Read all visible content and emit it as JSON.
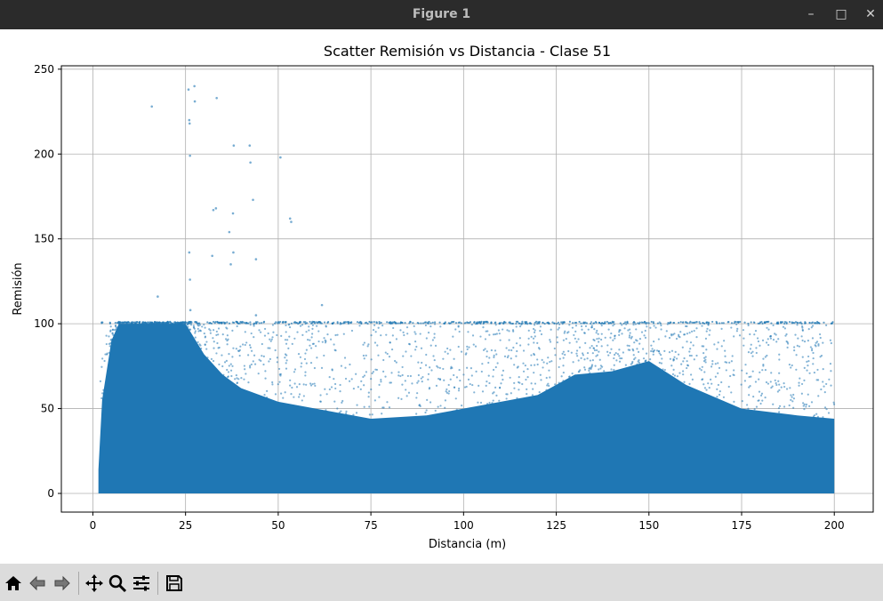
{
  "window": {
    "title": "Figure 1",
    "minimize_glyph": "–",
    "maximize_glyph": "□",
    "close_glyph": "✕"
  },
  "toolbar": {
    "buttons": [
      {
        "icon": "home-icon"
      },
      {
        "icon": "back-arrow-icon"
      },
      {
        "icon": "forward-arrow-icon"
      },
      {
        "icon": "pan-icon"
      },
      {
        "icon": "zoom-icon"
      },
      {
        "icon": "configure-subplots-icon"
      },
      {
        "icon": "save-icon"
      }
    ]
  },
  "chart_data": {
    "type": "scatter",
    "title": "Scatter Remisión vs Distancia - Clase 51",
    "xlabel": "Distancia (m)",
    "ylabel": "Remisión",
    "xlim": [
      -8.5,
      210.5
    ],
    "ylim": [
      -11,
      252
    ],
    "xticks": [
      "0",
      "25",
      "50",
      "75",
      "100",
      "125",
      "150",
      "175",
      "200"
    ],
    "yticks": [
      "0",
      "50",
      "100",
      "150",
      "200",
      "250"
    ],
    "grid": true,
    "point_color": "#1f77b4",
    "outliers": [
      {
        "x": 15.9,
        "y": 228
      },
      {
        "x": 17.5,
        "y": 116
      },
      {
        "x": 25.8,
        "y": 238
      },
      {
        "x": 26.0,
        "y": 220
      },
      {
        "x": 26.1,
        "y": 218
      },
      {
        "x": 26.2,
        "y": 199
      },
      {
        "x": 26.0,
        "y": 142
      },
      {
        "x": 26.2,
        "y": 126
      },
      {
        "x": 26.3,
        "y": 108
      },
      {
        "x": 27.4,
        "y": 240
      },
      {
        "x": 27.5,
        "y": 231
      },
      {
        "x": 32.5,
        "y": 167
      },
      {
        "x": 33.2,
        "y": 168
      },
      {
        "x": 33.4,
        "y": 233
      },
      {
        "x": 32.2,
        "y": 140
      },
      {
        "x": 36.8,
        "y": 154
      },
      {
        "x": 37.2,
        "y": 135
      },
      {
        "x": 37.8,
        "y": 165
      },
      {
        "x": 37.9,
        "y": 142
      },
      {
        "x": 38.0,
        "y": 205
      },
      {
        "x": 42.3,
        "y": 205
      },
      {
        "x": 42.5,
        "y": 195
      },
      {
        "x": 43.2,
        "y": 173
      },
      {
        "x": 44.0,
        "y": 138
      },
      {
        "x": 44.0,
        "y": 105
      },
      {
        "x": 50.6,
        "y": 198
      },
      {
        "x": 53.2,
        "y": 162
      },
      {
        "x": 53.5,
        "y": 160
      },
      {
        "x": 61.8,
        "y": 111
      }
    ],
    "dense_region": {
      "x_range": [
        1.5,
        200
      ],
      "y_range": [
        0,
        101
      ],
      "upper_envelope": [
        {
          "x": 1.5,
          "y": 14
        },
        {
          "x": 2.5,
          "y": 55
        },
        {
          "x": 5,
          "y": 90
        },
        {
          "x": 7,
          "y": 100
        },
        {
          "x": 25,
          "y": 100
        },
        {
          "x": 30,
          "y": 82
        },
        {
          "x": 35,
          "y": 70
        },
        {
          "x": 40,
          "y": 62
        },
        {
          "x": 50,
          "y": 54
        },
        {
          "x": 65,
          "y": 48
        },
        {
          "x": 75,
          "y": 44
        },
        {
          "x": 90,
          "y": 46
        },
        {
          "x": 105,
          "y": 52
        },
        {
          "x": 120,
          "y": 58
        },
        {
          "x": 130,
          "y": 70
        },
        {
          "x": 140,
          "y": 72
        },
        {
          "x": 150,
          "y": 78
        },
        {
          "x": 160,
          "y": 64
        },
        {
          "x": 175,
          "y": 50
        },
        {
          "x": 190,
          "y": 46
        },
        {
          "x": 200,
          "y": 44
        }
      ]
    }
  }
}
